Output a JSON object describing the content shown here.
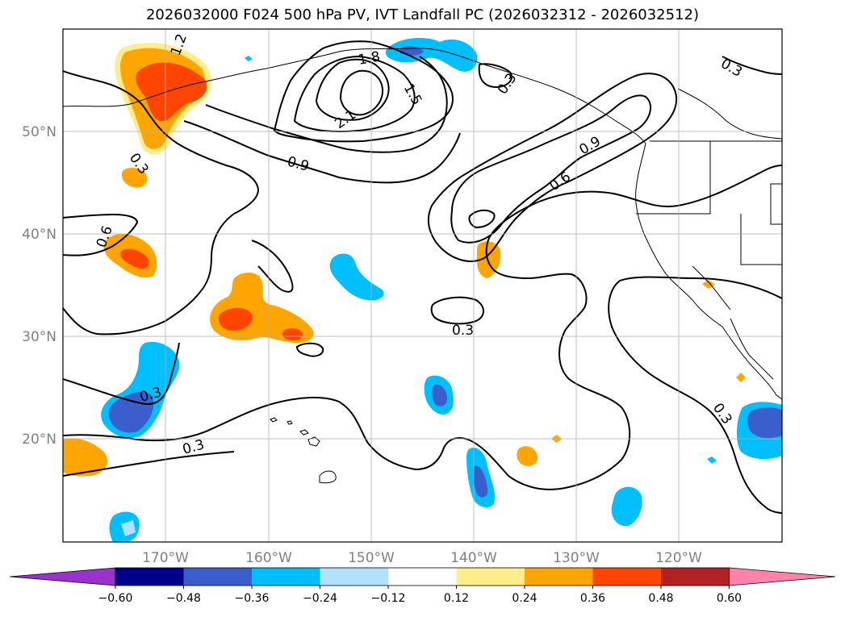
{
  "title": "2026032000 F024 500 hPa PV, IVT Landfall PC (2026032312 - 2026032512)",
  "lon_labels": [
    "170°W",
    "160°W",
    "150°W",
    "140°W",
    "130°W",
    "120°W"
  ],
  "lat_labels": [
    "50°N",
    "40°N",
    "30°N",
    "20°N"
  ],
  "contour_labels": [
    "1.2",
    "1.8",
    "1.5",
    "2.1",
    "0.3",
    "0.3",
    "0.3",
    "0.9",
    "0.9",
    "0.6",
    "0.6",
    "0.3",
    "0.3",
    "0.3",
    "0.3"
  ],
  "colorbar": {
    "ticks": [
      "−0.60",
      "−0.48",
      "−0.36",
      "−0.24",
      "−0.12",
      "0.12",
      "0.24",
      "0.36",
      "0.48",
      "0.60"
    ],
    "colors": [
      "#9932cc",
      "#00008b",
      "#3a5fcd",
      "#00bfff",
      "#b0e2ff",
      "#ffffff",
      "#ffec8b",
      "#ffa500",
      "#ff4500",
      "#b22222",
      "#ff82ab"
    ]
  }
}
